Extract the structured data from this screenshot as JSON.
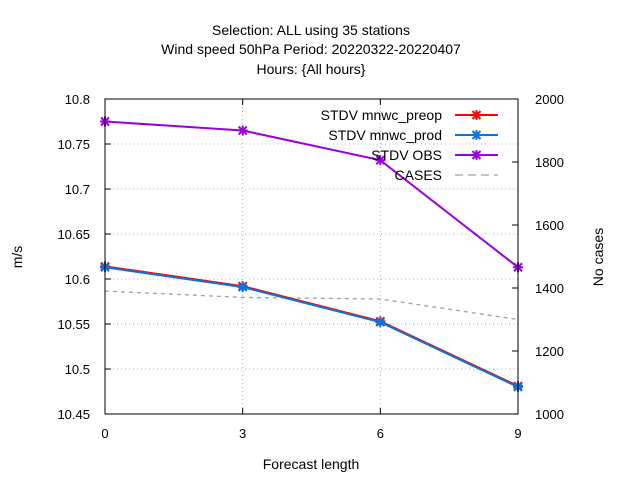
{
  "chart_data": {
    "type": "line",
    "title_lines": [
      "Selection: ALL using    35 stations",
      "Wind speed 50hPa   Period: 20220322-20220407",
      "Hours: {All hours}"
    ],
    "xlabel": "Forecast length",
    "ylabel": "m/s",
    "y2label": "No cases",
    "x": [
      0,
      3,
      6,
      9
    ],
    "xlim": [
      0,
      9
    ],
    "xticks": [
      "0",
      "3",
      "6",
      "9"
    ],
    "ylim": [
      10.45,
      10.8
    ],
    "yticks": [
      "10.45",
      "10.5",
      "10.55",
      "10.6",
      "10.65",
      "10.7",
      "10.75",
      "10.8"
    ],
    "y2lim": [
      1000,
      2000
    ],
    "y2ticks": [
      "1000",
      "1200",
      "1400",
      "1600",
      "1800",
      "2000"
    ],
    "grid": true,
    "legend_position": "top-right",
    "series": [
      {
        "name": "STDV mnwc_preop",
        "axis": "y",
        "color": "#ff0000",
        "dash": "solid",
        "marker": true,
        "values": [
          10.614,
          10.592,
          10.553,
          10.481
        ]
      },
      {
        "name": "STDV mnwc_prod",
        "axis": "y",
        "color": "#0a74da",
        "dash": "solid",
        "marker": true,
        "values": [
          10.613,
          10.591,
          10.552,
          10.48
        ]
      },
      {
        "name": "STDV OBS",
        "axis": "y",
        "color": "#9a00da",
        "dash": "solid",
        "marker": true,
        "values": [
          10.775,
          10.765,
          10.732,
          10.613
        ]
      },
      {
        "name": "CASES",
        "axis": "y2",
        "color": "#a0a0a0",
        "dash": "dashed",
        "marker": false,
        "values": [
          1390,
          1370,
          1365,
          1300
        ]
      }
    ]
  }
}
